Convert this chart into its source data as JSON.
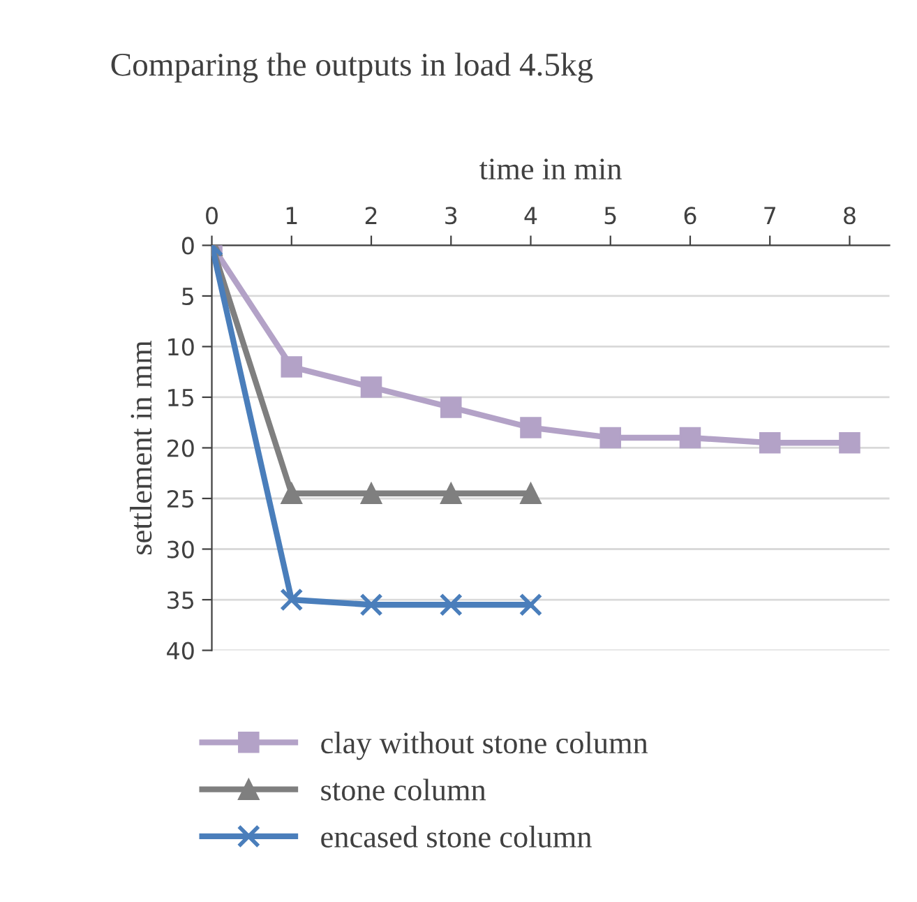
{
  "chart_data": {
    "type": "line",
    "title": "Comparing the outputs in load 4.5kg",
    "xlabel": "time in min",
    "ylabel": "settlement in mm",
    "xlim": [
      0,
      8.5
    ],
    "xticks": [
      0,
      1,
      2,
      3,
      4,
      5,
      6,
      7,
      8
    ],
    "ylim": [
      40,
      0
    ],
    "yticks": [
      0,
      5,
      10,
      15,
      20,
      25,
      30,
      35,
      40
    ],
    "grid": "y",
    "legend": "bottom",
    "line_style": "solid",
    "series": [
      {
        "name": "clay without stone column",
        "color": "#b3a2c7",
        "marker": "square",
        "x": [
          0,
          1,
          2,
          3,
          4,
          5,
          6,
          7,
          8
        ],
        "values": [
          0,
          12,
          14,
          16,
          18,
          19,
          19,
          19.5,
          19.5
        ]
      },
      {
        "name": "stone column",
        "color": "#7f7f7f",
        "marker": "triangle",
        "x": [
          0,
          1,
          2,
          3,
          4
        ],
        "values": [
          0,
          24.5,
          24.5,
          24.5,
          24.5
        ]
      },
      {
        "name": "encased stone column",
        "color": "#4a7ebb",
        "marker": "cross",
        "x": [
          0,
          1,
          2,
          3,
          4
        ],
        "values": [
          0,
          35,
          35.5,
          35.5,
          35.5
        ]
      }
    ]
  }
}
